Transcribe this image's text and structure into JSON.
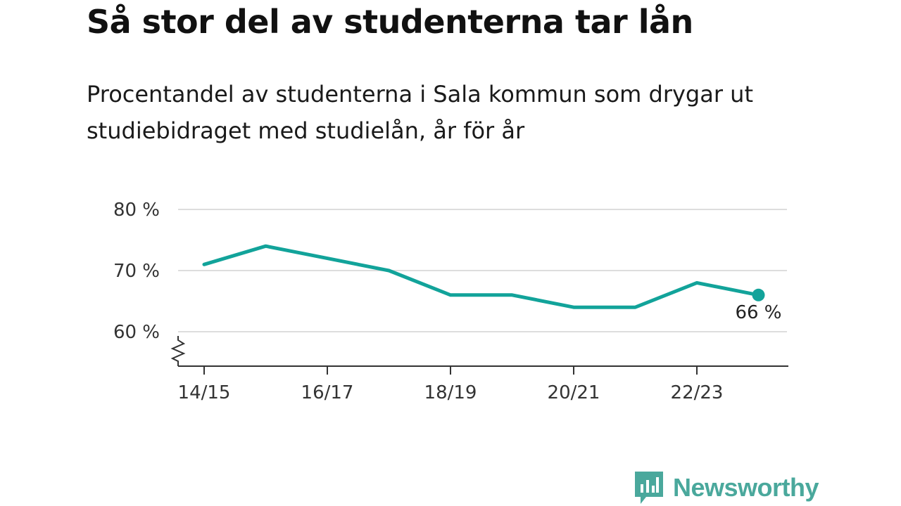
{
  "title": "Så stor del av studenterna tar lån",
  "subtitle": "Procentandel av studenterna i Sala kommun som drygar ut studiebidraget med studielån, år för år",
  "brand": {
    "name": "Newsworthy",
    "icon": "newsworthy-logo-icon",
    "color": "#4aa89c"
  },
  "chart_data": {
    "type": "line",
    "x": [
      "14/15",
      "15/16",
      "16/17",
      "17/18",
      "18/19",
      "19/20",
      "20/21",
      "21/22",
      "22/23",
      "23/24"
    ],
    "x_tick_labels": [
      "14/15",
      "16/17",
      "18/19",
      "20/21",
      "22/23"
    ],
    "series": [
      {
        "values": [
          71,
          74,
          72,
          70,
          66,
          66,
          64,
          64,
          68,
          66
        ],
        "color": "#12a39a"
      }
    ],
    "ylim": [
      55,
      80
    ],
    "y_ticks": [
      60,
      70,
      80
    ],
    "y_tick_labels": [
      "60 %",
      "70 %",
      "80 %"
    ],
    "axis_break": true,
    "grid": true,
    "end_label": "66 %"
  }
}
